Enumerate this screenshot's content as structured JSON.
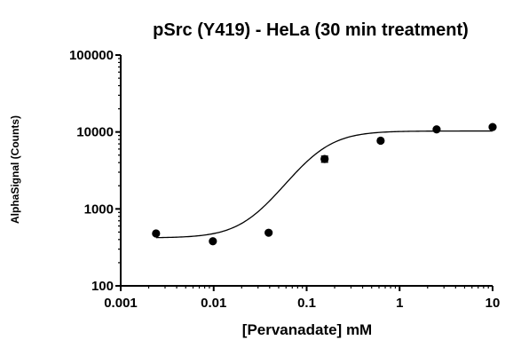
{
  "chart_data": {
    "type": "scatter",
    "title": "pSrc (Y419) - HeLa (30 min treatment)",
    "xlabel": "[Pervanadate] mM",
    "ylabel": "AlphaSignal (Counts)",
    "xscale": "log",
    "yscale": "log",
    "xlim": [
      0.001,
      10
    ],
    "ylim": [
      100,
      100000
    ],
    "xticks": [
      0.001,
      0.01,
      0.1,
      1,
      10
    ],
    "xtick_labels": [
      "0.001",
      "0.01",
      "0.1",
      "1",
      "10"
    ],
    "yticks": [
      100,
      1000,
      10000,
      100000
    ],
    "ytick_labels": [
      "100",
      "1000",
      "10000",
      "100000"
    ],
    "grid": false,
    "legend": "none",
    "series": [
      {
        "x": [
          0.0024,
          0.0098,
          0.039,
          0.156,
          0.625,
          2.5,
          10
        ],
        "y": [
          480,
          380,
          490,
          4450,
          7700,
          10800,
          11600
        ],
        "y_error": [
          0,
          0,
          0,
          400,
          0,
          0,
          0
        ]
      }
    ],
    "fit_curve": {
      "model": "sigmoidal dose-response",
      "bottom": 420,
      "top": 10300,
      "ec50": 0.13,
      "hill_slope": 2.0
    }
  }
}
